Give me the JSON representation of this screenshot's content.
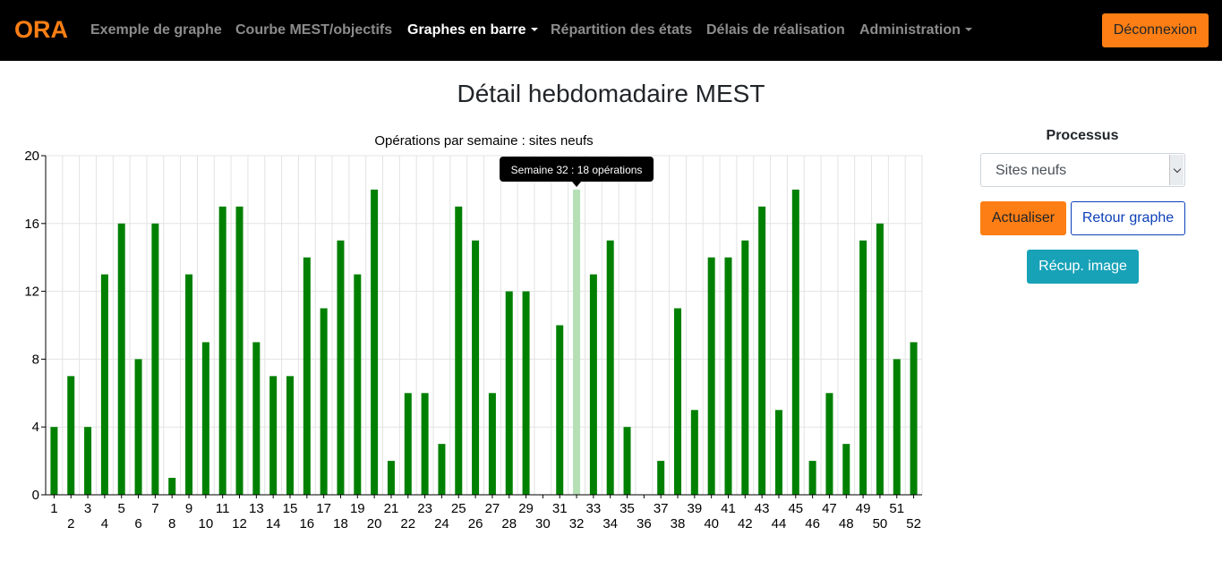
{
  "navbar": {
    "brand": "ORA",
    "items": [
      {
        "label": "Exemple de graphe"
      },
      {
        "label": "Courbe MEST/objectifs"
      },
      {
        "label": "Graphes en barre"
      },
      {
        "label": "Répartition des états"
      },
      {
        "label": "Délais de réalisation"
      },
      {
        "label": "Administration"
      }
    ],
    "logout_label": "Déconnexion"
  },
  "page": {
    "title": "Détail hebdomadaire MEST"
  },
  "sidebar": {
    "title": "Processus",
    "select_value": "Sites neufs",
    "refresh_label": "Actualiser",
    "back_label": "Retour graphe",
    "image_label": "Récup. image"
  },
  "tooltip": {
    "text": "Semaine 32 : 18 opérations",
    "week_index": 31
  },
  "colors": {
    "bar": "#008000",
    "bar_hover": "#b6dfb6",
    "accent": "#fd7e14",
    "teal": "#17a2b8",
    "navbar": "#000000"
  },
  "chart_data": {
    "type": "bar",
    "title": "Opérations par semaine : sites neufs",
    "xlabel": "",
    "ylabel": "",
    "ylim": [
      0,
      20
    ],
    "yticks": [
      0,
      4,
      8,
      12,
      16,
      20
    ],
    "grid": true,
    "categories": [
      "1",
      "2",
      "3",
      "4",
      "5",
      "6",
      "7",
      "8",
      "9",
      "10",
      "11",
      "12",
      "13",
      "14",
      "15",
      "16",
      "17",
      "18",
      "19",
      "20",
      "21",
      "22",
      "23",
      "24",
      "25",
      "26",
      "27",
      "28",
      "29",
      "30",
      "31",
      "32",
      "33",
      "34",
      "35",
      "36",
      "37",
      "38",
      "39",
      "40",
      "41",
      "42",
      "43",
      "44",
      "45",
      "46",
      "47",
      "48",
      "49",
      "50",
      "51",
      "52"
    ],
    "values": [
      4,
      7,
      4,
      13,
      16,
      8,
      16,
      1,
      13,
      9,
      17,
      17,
      9,
      7,
      7,
      14,
      11,
      15,
      13,
      18,
      2,
      6,
      6,
      3,
      17,
      15,
      6,
      12,
      12,
      0,
      10,
      18,
      13,
      15,
      4,
      0,
      2,
      11,
      5,
      14,
      14,
      15,
      17,
      5,
      18,
      2,
      6,
      3,
      15,
      16,
      8,
      9
    ]
  }
}
